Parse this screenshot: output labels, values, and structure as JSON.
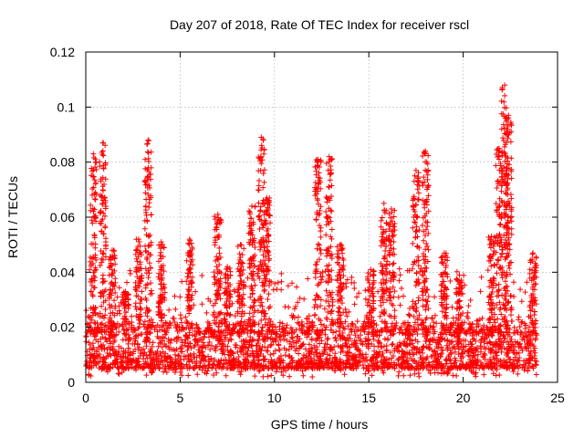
{
  "chart_data": {
    "type": "scatter",
    "title": "Day 207 of 2018, Rate Of TEC Index for receiver rscl",
    "xlabel": "GPS time / hours",
    "ylabel": "ROTI / TECUs",
    "xlim": [
      0,
      25
    ],
    "ylim": [
      0,
      0.12
    ],
    "xticks": [
      0,
      5,
      10,
      15,
      20,
      25
    ],
    "xtick_labels": [
      "0",
      "5",
      "10",
      "15",
      "20",
      "25"
    ],
    "yticks": [
      0,
      0.02,
      0.04,
      0.06,
      0.08,
      0.1,
      0.12
    ],
    "ytick_labels": [
      "0",
      "0.02",
      "0.04",
      "0.06",
      "0.08",
      "0.1",
      "0.12"
    ],
    "grid": true,
    "marker": "+",
    "color": "#ff0000",
    "series": [
      {
        "name": "ROTI",
        "x_range": [
          0,
          23.9
        ],
        "background_band_low": 0.005,
        "background_band_high": 0.022,
        "spikes": [
          {
            "x": 0.4,
            "peak": 0.083
          },
          {
            "x": 0.9,
            "peak": 0.087
          },
          {
            "x": 1.4,
            "peak": 0.048
          },
          {
            "x": 2.1,
            "peak": 0.033
          },
          {
            "x": 2.8,
            "peak": 0.052
          },
          {
            "x": 3.3,
            "peak": 0.088
          },
          {
            "x": 4.0,
            "peak": 0.051
          },
          {
            "x": 5.5,
            "peak": 0.052
          },
          {
            "x": 7.0,
            "peak": 0.061
          },
          {
            "x": 7.5,
            "peak": 0.042
          },
          {
            "x": 8.2,
            "peak": 0.05
          },
          {
            "x": 8.8,
            "peak": 0.064
          },
          {
            "x": 9.3,
            "peak": 0.089
          },
          {
            "x": 9.6,
            "peak": 0.067
          },
          {
            "x": 12.3,
            "peak": 0.081
          },
          {
            "x": 12.9,
            "peak": 0.082
          },
          {
            "x": 13.5,
            "peak": 0.05
          },
          {
            "x": 15.1,
            "peak": 0.041
          },
          {
            "x": 15.8,
            "peak": 0.065
          },
          {
            "x": 16.2,
            "peak": 0.063
          },
          {
            "x": 17.5,
            "peak": 0.077
          },
          {
            "x": 18.0,
            "peak": 0.084
          },
          {
            "x": 19.0,
            "peak": 0.047
          },
          {
            "x": 19.8,
            "peak": 0.039
          },
          {
            "x": 21.5,
            "peak": 0.053
          },
          {
            "x": 21.9,
            "peak": 0.085
          },
          {
            "x": 22.2,
            "peak": 0.108
          },
          {
            "x": 22.4,
            "peak": 0.097
          },
          {
            "x": 23.7,
            "peak": 0.047
          }
        ]
      }
    ]
  }
}
